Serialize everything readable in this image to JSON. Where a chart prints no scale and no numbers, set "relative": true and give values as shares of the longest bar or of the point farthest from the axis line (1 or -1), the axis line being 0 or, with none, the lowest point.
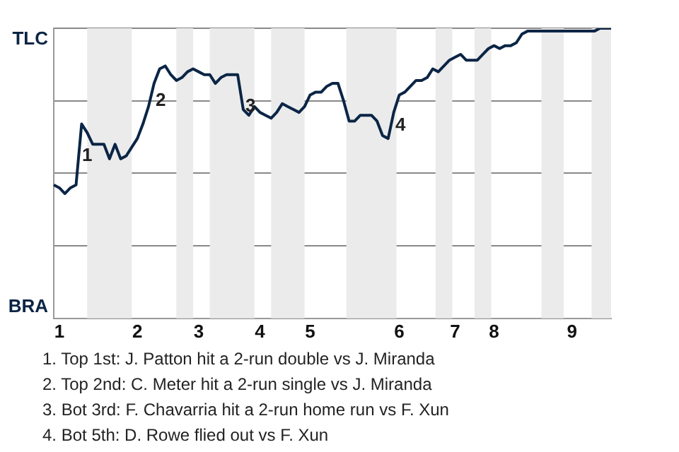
{
  "chart_data": {
    "type": "line",
    "relative": true,
    "categories": [
      null,
      "1",
      null,
      null,
      null,
      null,
      null,
      null,
      null,
      null,
      null,
      null,
      null,
      null,
      null,
      "2",
      null,
      null,
      null,
      null,
      null,
      null,
      null,
      null,
      null,
      null,
      "3",
      null,
      null,
      null,
      null,
      null,
      null,
      null,
      null,
      null,
      null,
      "4",
      null,
      null,
      null,
      null,
      null,
      null,
      null,
      null,
      "5",
      null,
      null,
      null,
      null,
      null,
      null,
      null,
      null,
      null,
      null,
      null,
      null,
      null,
      null,
      null,
      "6",
      null,
      null,
      null,
      null,
      null,
      null,
      null,
      null,
      null,
      "7",
      null,
      null,
      null,
      null,
      null,
      null,
      "8",
      null,
      null,
      null,
      null,
      null,
      null,
      null,
      null,
      null,
      null,
      null,
      null,
      null,
      "9",
      null,
      null,
      null,
      null,
      null,
      null,
      null
    ],
    "series": [
      {
        "color": "#0b2545",
        "values": [
          0.46,
          0.45,
          0.43,
          0.45,
          0.46,
          0.67,
          0.64,
          0.6,
          0.6,
          0.6,
          0.55,
          0.6,
          0.55,
          0.56,
          0.59,
          0.62,
          0.67,
          0.73,
          0.81,
          0.86,
          0.87,
          0.84,
          0.82,
          0.83,
          0.85,
          0.86,
          0.85,
          0.84,
          0.84,
          0.81,
          0.83,
          0.84,
          0.84,
          0.84,
          0.72,
          0.7,
          0.73,
          0.71,
          0.7,
          0.69,
          0.71,
          0.74,
          0.73,
          0.72,
          0.71,
          0.73,
          0.77,
          0.78,
          0.78,
          0.8,
          0.81,
          0.81,
          0.75,
          0.68,
          0.68,
          0.7,
          0.7,
          0.7,
          0.68,
          0.63,
          0.62,
          0.71,
          0.77,
          0.78,
          0.8,
          0.82,
          0.82,
          0.83,
          0.86,
          0.85,
          0.87,
          0.89,
          0.9,
          0.91,
          0.89,
          0.89,
          0.89,
          0.91,
          0.93,
          0.94,
          0.93,
          0.94,
          0.94,
          0.95,
          0.98,
          0.99,
          0.99,
          0.99,
          0.99,
          0.99,
          0.99,
          0.99,
          0.99,
          0.99,
          0.99,
          0.99,
          0.99,
          0.99,
          1,
          1,
          1
        ]
      }
    ],
    "grid": "y",
    "legend": false,
    "marker": "none",
    "line_style": "solid",
    "annotations": [
      "TLC",
      "BRA",
      "1",
      "2",
      "3",
      "4",
      "1. Top 1st: J. Patton hit a 2-run double vs J. Miranda",
      "2. Top 2nd: C. Meter hit a 2-run single vs J. Miranda",
      "3. Bot 3rd: F. Chavarria hit a 2-run home run vs F. Xun",
      "4. Bot 5th: D. Rowe flied out vs F. Xun"
    ]
  }
}
